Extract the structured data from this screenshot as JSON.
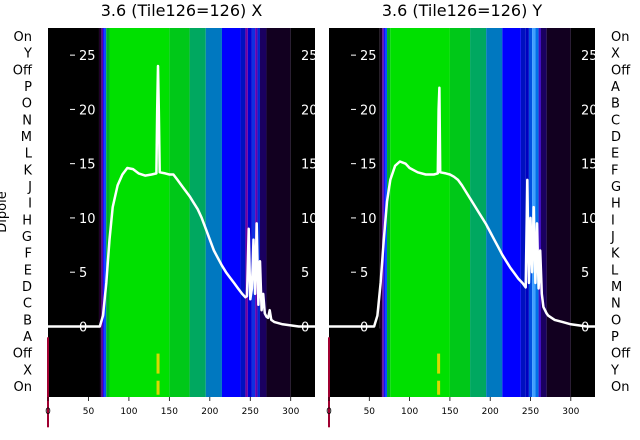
{
  "chart_data": [
    {
      "type": "heatmap",
      "title": "3.6 (Tile126=126) X",
      "ylabel": "Dipole",
      "xlim": [
        0,
        330
      ],
      "xticks": [
        0,
        50,
        100,
        150,
        200,
        250,
        300
      ],
      "row_labels": [
        "On",
        "Y",
        "Off",
        "P",
        "O",
        "N",
        "M",
        "L",
        "K",
        "J",
        "I",
        "H",
        "G",
        "F",
        "E",
        "D",
        "C",
        "B",
        "A",
        "Off",
        "X",
        "On"
      ],
      "overlay": {
        "type": "line",
        "ylim": [
          -6.5,
          27.5
        ],
        "yticks": [
          0,
          5,
          10,
          15,
          20,
          25
        ],
        "x": [
          0,
          64,
          68,
          72,
          76,
          80,
          86,
          92,
          98,
          105,
          112,
          120,
          128,
          134,
          135,
          136,
          137,
          138,
          145,
          150,
          155,
          160,
          165,
          170,
          175,
          180,
          185,
          190,
          195,
          200,
          205,
          210,
          215,
          220,
          225,
          230,
          235,
          240,
          244,
          246,
          248,
          250,
          252,
          254,
          256,
          258,
          260,
          262,
          264,
          266,
          268,
          270,
          272,
          274,
          276,
          278,
          280,
          285,
          290,
          300,
          310,
          320,
          330
        ],
        "y": [
          0,
          0,
          1,
          4,
          8,
          11,
          13,
          14,
          14.6,
          14.5,
          14.1,
          13.9,
          14.0,
          14.1,
          20,
          24,
          20,
          14.2,
          14.1,
          14.0,
          14.0,
          13.5,
          13.0,
          12.5,
          12.0,
          11.4,
          10.8,
          10.0,
          9.0,
          8.0,
          7.0,
          6.3,
          5.6,
          5.0,
          4.5,
          4.0,
          3.5,
          3.0,
          2.7,
          2.8,
          9.0,
          2.5,
          3.5,
          8.0,
          3.0,
          9.5,
          2.0,
          6.0,
          1.5,
          3.0,
          1.2,
          0.9,
          0.8,
          1.5,
          0.6,
          0.5,
          0.4,
          0.3,
          0.2,
          0.1,
          0.0,
          0.0,
          0.0
        ]
      },
      "heat_columns": [
        {
          "from": 0,
          "to": 63,
          "color": "#000000"
        },
        {
          "from": 63,
          "to": 66,
          "color": "#1f0028"
        },
        {
          "from": 66,
          "to": 68,
          "color": "#5a00a0"
        },
        {
          "from": 68,
          "to": 70,
          "color": "#1010ff"
        },
        {
          "from": 70,
          "to": 72,
          "color": "#0050ff"
        },
        {
          "from": 72,
          "to": 76,
          "color": "#00b020"
        },
        {
          "from": 76,
          "to": 150,
          "color": "#00e000"
        },
        {
          "from": 150,
          "to": 175,
          "color": "#00c818"
        },
        {
          "from": 175,
          "to": 195,
          "color": "#00a860"
        },
        {
          "from": 195,
          "to": 215,
          "color": "#0078c0"
        },
        {
          "from": 215,
          "to": 238,
          "color": "#0000ff"
        },
        {
          "from": 238,
          "to": 244,
          "color": "#0010c0"
        },
        {
          "from": 244,
          "to": 247,
          "color": "#7000a0"
        },
        {
          "from": 247,
          "to": 252,
          "color": "#0000d0"
        },
        {
          "from": 252,
          "to": 256,
          "color": "#1030e0"
        },
        {
          "from": 256,
          "to": 259,
          "color": "#6000b0"
        },
        {
          "from": 259,
          "to": 262,
          "color": "#0028d0"
        },
        {
          "from": 262,
          "to": 270,
          "color": "#1a0060"
        },
        {
          "from": 270,
          "to": 300,
          "color": "#120020"
        },
        {
          "from": 300,
          "to": 330,
          "color": "#000000"
        }
      ]
    },
    {
      "type": "heatmap",
      "title": "3.6 (Tile126=126) Y",
      "xlim": [
        0,
        330
      ],
      "xticks": [
        0,
        50,
        100,
        150,
        200,
        250,
        300
      ],
      "row_labels": [
        "On",
        "X",
        "Off",
        "A",
        "B",
        "C",
        "D",
        "E",
        "F",
        "G",
        "H",
        "I",
        "J",
        "K",
        "L",
        "M",
        "N",
        "O",
        "P",
        "Off",
        "Y",
        "On"
      ],
      "overlay": {
        "type": "line",
        "ylim": [
          -6.5,
          27.5
        ],
        "yticks": [
          0,
          5,
          10,
          15,
          20,
          25
        ],
        "x": [
          0,
          56,
          60,
          64,
          68,
          72,
          76,
          82,
          88,
          95,
          100,
          110,
          120,
          130,
          135,
          136,
          137,
          138,
          145,
          150,
          155,
          160,
          165,
          170,
          175,
          180,
          185,
          190,
          195,
          200,
          205,
          210,
          215,
          220,
          225,
          230,
          235,
          240,
          244,
          246,
          248,
          250,
          252,
          254,
          256,
          258,
          260,
          262,
          264,
          266,
          268,
          270,
          272,
          276,
          280,
          290,
          300,
          310,
          320,
          330
        ],
        "y": [
          0,
          0,
          1,
          4,
          8,
          11.5,
          13.5,
          14.8,
          15.2,
          15.0,
          14.6,
          14.2,
          14.0,
          14.0,
          14.1,
          20,
          22,
          14.2,
          14.1,
          14.0,
          13.8,
          13.5,
          13.0,
          12.4,
          11.8,
          11.2,
          10.6,
          10.0,
          9.4,
          8.7,
          8.0,
          7.3,
          6.6,
          6.0,
          5.4,
          4.9,
          4.4,
          4.0,
          3.6,
          13.5,
          4.0,
          10.0,
          5.0,
          11.0,
          4.0,
          9.5,
          3.5,
          7.0,
          3.0,
          1.8,
          1.5,
          1.2,
          1.0,
          0.8,
          0.6,
          0.4,
          0.2,
          0.1,
          0.0,
          0.0
        ]
      },
      "heat_columns": [
        {
          "from": 0,
          "to": 63,
          "color": "#000000"
        },
        {
          "from": 63,
          "to": 66,
          "color": "#1f0028"
        },
        {
          "from": 66,
          "to": 68,
          "color": "#5a00a0"
        },
        {
          "from": 68,
          "to": 70,
          "color": "#1010ff"
        },
        {
          "from": 70,
          "to": 72,
          "color": "#0050ff"
        },
        {
          "from": 72,
          "to": 76,
          "color": "#00b020"
        },
        {
          "from": 76,
          "to": 150,
          "color": "#00e000"
        },
        {
          "from": 150,
          "to": 175,
          "color": "#00c818"
        },
        {
          "from": 175,
          "to": 195,
          "color": "#00a860"
        },
        {
          "from": 195,
          "to": 215,
          "color": "#0078c0"
        },
        {
          "from": 215,
          "to": 238,
          "color": "#0000ff"
        },
        {
          "from": 238,
          "to": 244,
          "color": "#0010c0"
        },
        {
          "from": 244,
          "to": 248,
          "color": "#0000c0"
        },
        {
          "from": 248,
          "to": 252,
          "color": "#0050e0"
        },
        {
          "from": 252,
          "to": 256,
          "color": "#40a0ff"
        },
        {
          "from": 256,
          "to": 260,
          "color": "#0070e8"
        },
        {
          "from": 260,
          "to": 263,
          "color": "#4010c0"
        },
        {
          "from": 263,
          "to": 270,
          "color": "#1a0060"
        },
        {
          "from": 270,
          "to": 300,
          "color": "#120020"
        },
        {
          "from": 300,
          "to": 330,
          "color": "#000000"
        }
      ]
    }
  ]
}
